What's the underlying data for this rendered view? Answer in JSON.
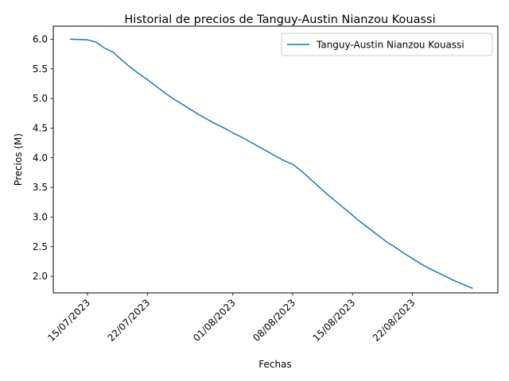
{
  "chart_data": {
    "type": "line",
    "title": "Historial de precios de Tanguy-Austin Nianzou Kouassi",
    "xlabel": "Fechas",
    "ylabel": "Precios (M)",
    "xlim": [
      "2023-07-11",
      "2023-09-01"
    ],
    "ylim": [
      1.72,
      6.22
    ],
    "x_ticks": [
      {
        "date": "2023-07-15",
        "label": "15/07/2023"
      },
      {
        "date": "2023-07-22",
        "label": "22/07/2023"
      },
      {
        "date": "2023-08-01",
        "label": "01/08/2023"
      },
      {
        "date": "2023-08-08",
        "label": "08/08/2023"
      },
      {
        "date": "2023-08-15",
        "label": "15/08/2023"
      },
      {
        "date": "2023-08-22",
        "label": "22/08/2023"
      }
    ],
    "y_ticks": [
      {
        "value": 2.0,
        "label": "2.0"
      },
      {
        "value": 2.5,
        "label": "2.5"
      },
      {
        "value": 3.0,
        "label": "3.0"
      },
      {
        "value": 3.5,
        "label": "3.5"
      },
      {
        "value": 4.0,
        "label": "4.0"
      },
      {
        "value": 4.5,
        "label": "4.5"
      },
      {
        "value": 5.0,
        "label": "5.0"
      },
      {
        "value": 5.5,
        "label": "5.5"
      },
      {
        "value": 6.0,
        "label": "6.0"
      }
    ],
    "grid": false,
    "legend_position": "top-right",
    "series": [
      {
        "name": "Tanguy-Austin Nianzou Kouassi",
        "color": "#1f77b4",
        "x": [
          "2023-07-13",
          "2023-07-15",
          "2023-07-16",
          "2023-07-17",
          "2023-07-18",
          "2023-07-19",
          "2023-07-20",
          "2023-07-21",
          "2023-07-22",
          "2023-07-23",
          "2023-07-24",
          "2023-07-25",
          "2023-07-26",
          "2023-07-27",
          "2023-07-28",
          "2023-07-29",
          "2023-07-30",
          "2023-07-31",
          "2023-08-01",
          "2023-08-02",
          "2023-08-03",
          "2023-08-04",
          "2023-08-05",
          "2023-08-06",
          "2023-08-07",
          "2023-08-08",
          "2023-08-09",
          "2023-08-10",
          "2023-08-11",
          "2023-08-12",
          "2023-08-13",
          "2023-08-14",
          "2023-08-15",
          "2023-08-16",
          "2023-08-17",
          "2023-08-18",
          "2023-08-19",
          "2023-08-20",
          "2023-08-21",
          "2023-08-22",
          "2023-08-23",
          "2023-08-24",
          "2023-08-25",
          "2023-08-26",
          "2023-08-27",
          "2023-08-28",
          "2023-08-29"
        ],
        "values": [
          6.0,
          5.99,
          5.95,
          5.85,
          5.78,
          5.65,
          5.53,
          5.42,
          5.32,
          5.21,
          5.1,
          5.0,
          4.91,
          4.82,
          4.73,
          4.65,
          4.57,
          4.5,
          4.42,
          4.35,
          4.27,
          4.19,
          4.11,
          4.03,
          3.95,
          3.89,
          3.78,
          3.65,
          3.52,
          3.39,
          3.27,
          3.15,
          3.03,
          2.91,
          2.8,
          2.69,
          2.58,
          2.49,
          2.39,
          2.3,
          2.21,
          2.13,
          2.06,
          1.99,
          1.92,
          1.86,
          1.8
        ]
      }
    ]
  }
}
